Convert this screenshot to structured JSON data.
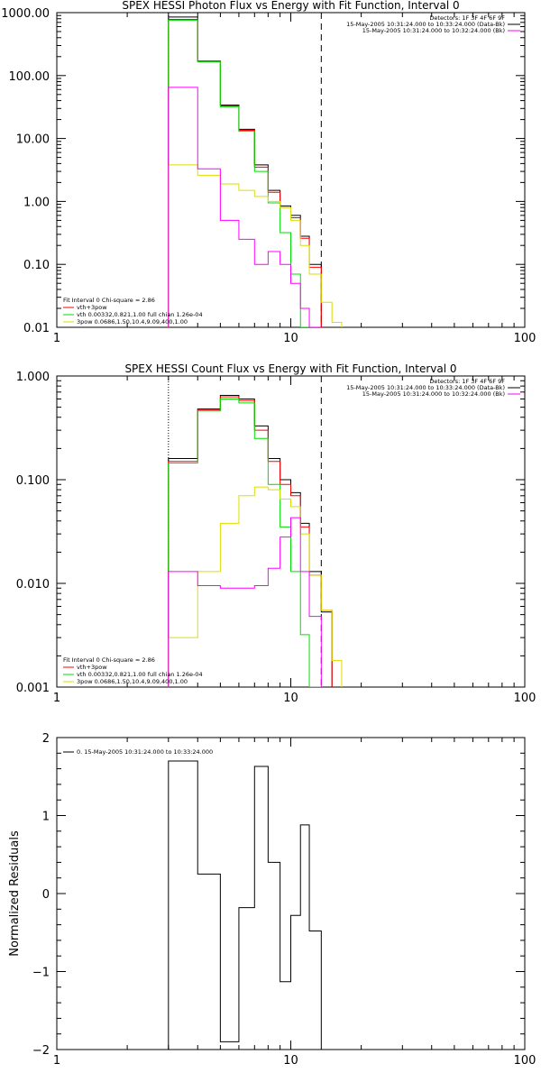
{
  "colors": {
    "data": "#000000",
    "total": "#ff0000",
    "vth": "#00dd00",
    "bpow": "#dddd00",
    "bk": "#ff00ff"
  },
  "chart_data": [
    {
      "type": "line",
      "step": true,
      "title": "SPEX HESSI Photon Flux vs Energy with Fit Function, Interval 0",
      "xscale": "log",
      "yscale": "log",
      "xlim": [
        1,
        100
      ],
      "ylim": [
        0.01,
        1000
      ],
      "x_ticks": [
        1,
        10,
        100
      ],
      "x_tick_labels": [
        "1",
        "10",
        "100"
      ],
      "y_ticks": [
        0.01,
        0.1,
        1,
        10,
        100,
        1000
      ],
      "y_tick_labels": [
        "0.01",
        "0.10",
        "1.00",
        "10.00",
        "100.00",
        "1000.00"
      ],
      "xlabel": "",
      "ylabel": "",
      "info_lines": [
        {
          "text": "Detectors: 1F 3F 4F 6F 9F",
          "series": null
        },
        {
          "text": "15-May-2005 10:31:24.000 to 10:33:24.000 (Data-Bk)",
          "series": "data"
        },
        {
          "text": "15-May-2005 10:31:24.000 to 10:32:24.000 (Bk)",
          "series": "bk"
        }
      ],
      "legend_lines": [
        {
          "text": "Fit Interval 0   Chi-square = 2.86",
          "series": null
        },
        {
          "text": "vth+3pow",
          "series": "total"
        },
        {
          "text": "vth 0.00332,0.821,1.00  full chian 1.26e-04",
          "series": "vth"
        },
        {
          "text": "3pow 0.0686,1.50,10.4,9.09,400,1.00",
          "series": "bpow"
        }
      ],
      "vlines": [
        {
          "x": 3.0,
          "style": "dotted",
          "color": "#000000"
        },
        {
          "x": 13.5,
          "style": "dashed",
          "color": "#000000"
        }
      ],
      "edges": [
        3,
        4,
        5,
        6,
        7,
        8,
        9,
        10,
        11,
        12,
        13.5,
        15,
        16.5
      ],
      "series": [
        {
          "key": "data",
          "values": [
            850,
            170,
            34,
            14,
            3.8,
            1.5,
            0.85,
            0.6,
            0.28,
            0.1,
            null,
            null
          ]
        },
        {
          "key": "total",
          "values": [
            780,
            170,
            33,
            13.5,
            3.5,
            1.4,
            0.8,
            0.55,
            0.26,
            0.09,
            null,
            null
          ]
        },
        {
          "key": "vth",
          "values": [
            760,
            165,
            32,
            13,
            3.0,
            0.95,
            0.32,
            0.07,
            0.008,
            null,
            null,
            null
          ]
        },
        {
          "key": "bpow",
          "values": [
            3.8,
            2.6,
            1.9,
            1.5,
            1.2,
            1.0,
            0.8,
            0.5,
            0.2,
            0.07,
            0.025,
            0.012
          ]
        },
        {
          "key": "bk",
          "values": [
            65,
            3.3,
            0.5,
            0.25,
            0.1,
            0.16,
            0.1,
            0.05,
            0.02,
            0.003,
            null,
            null
          ]
        }
      ]
    },
    {
      "type": "line",
      "step": true,
      "title": "SPEX HESSI Count Flux vs Energy with Fit Function, Interval 0",
      "xscale": "log",
      "yscale": "log",
      "xlim": [
        1,
        100
      ],
      "ylim": [
        0.001,
        1
      ],
      "x_ticks": [
        1,
        10,
        100
      ],
      "x_tick_labels": [
        "1",
        "10",
        "100"
      ],
      "y_ticks": [
        0.001,
        0.01,
        0.1,
        1
      ],
      "y_tick_labels": [
        "0.001",
        "0.010",
        "0.100",
        "1.000"
      ],
      "xlabel": "",
      "ylabel": "",
      "info_lines": [
        {
          "text": "Detectors: 1F 3F 4F 6F 9F",
          "series": null
        },
        {
          "text": "15-May-2005 10:31:24.000 to 10:33:24.000 (Data-Bk)",
          "series": "data"
        },
        {
          "text": "15-May-2005 10:31:24.000 to 10:32:24.000 (Bk)",
          "series": "bk"
        }
      ],
      "legend_lines": [
        {
          "text": "Fit Interval 0   Chi-square = 2.86",
          "series": null
        },
        {
          "text": "vth+3pow",
          "series": "total"
        },
        {
          "text": "vth 0.00332,0.821,1.00  full chian 1.26e-04",
          "series": "vth"
        },
        {
          "text": "3pow 0.0686,1.50,10.4,9.09,400,1.00",
          "series": "bpow"
        }
      ],
      "vlines": [
        {
          "x": 3.0,
          "style": "dotted",
          "color": "#000000"
        },
        {
          "x": 13.5,
          "style": "dashed",
          "color": "#000000"
        }
      ],
      "edges": [
        3,
        4,
        5,
        6,
        7,
        8,
        9,
        10,
        11,
        12,
        13.5,
        15,
        16.5
      ],
      "series": [
        {
          "key": "data",
          "values": [
            0.16,
            0.48,
            0.65,
            0.6,
            0.33,
            0.16,
            0.1,
            0.075,
            0.038,
            0.013,
            0.0053,
            null
          ]
        },
        {
          "key": "total",
          "values": [
            0.15,
            0.47,
            0.63,
            0.58,
            0.3,
            0.15,
            0.09,
            0.07,
            0.035,
            0.012,
            0.0055,
            null
          ]
        },
        {
          "key": "vth",
          "values": [
            0.145,
            0.46,
            0.6,
            0.55,
            0.25,
            0.09,
            0.035,
            0.013,
            0.0032,
            0.0008,
            null,
            null
          ]
        },
        {
          "key": "bpow",
          "values": [
            0.003,
            0.013,
            0.038,
            0.07,
            0.085,
            0.08,
            0.065,
            0.055,
            0.03,
            0.012,
            0.0055,
            0.0018
          ]
        },
        {
          "key": "bk",
          "values": [
            0.013,
            0.0095,
            0.009,
            0.009,
            0.0095,
            0.014,
            0.028,
            0.043,
            0.013,
            0.0048,
            null,
            null
          ]
        }
      ]
    },
    {
      "type": "line",
      "step": true,
      "title": "",
      "xscale": "log",
      "yscale": "linear",
      "xlim": [
        1,
        100
      ],
      "ylim": [
        -2,
        2
      ],
      "x_ticks": [
        1,
        10,
        100
      ],
      "x_tick_labels": [
        "1",
        "10",
        "100"
      ],
      "y_ticks": [
        -2,
        -1,
        0,
        1,
        2
      ],
      "y_tick_labels": [
        "−2",
        "−1",
        "0",
        "1",
        "2"
      ],
      "xlabel": "",
      "ylabel": "Normalized Residuals",
      "info_lines": [],
      "legend_lines": [
        {
          "text": "0. 15-May-2005 10:31:24.000 to 10:33:24.000",
          "series": "data"
        }
      ],
      "vlines": [],
      "edges": [
        3,
        4,
        5,
        6,
        7,
        8,
        9,
        10,
        11,
        12,
        13.5
      ],
      "series": [
        {
          "key": "data",
          "values": [
            1.7,
            0.25,
            -1.9,
            -0.18,
            1.63,
            0.4,
            -1.13,
            -0.28,
            0.88,
            -0.48
          ],
          "bottom": -2
        }
      ]
    }
  ]
}
